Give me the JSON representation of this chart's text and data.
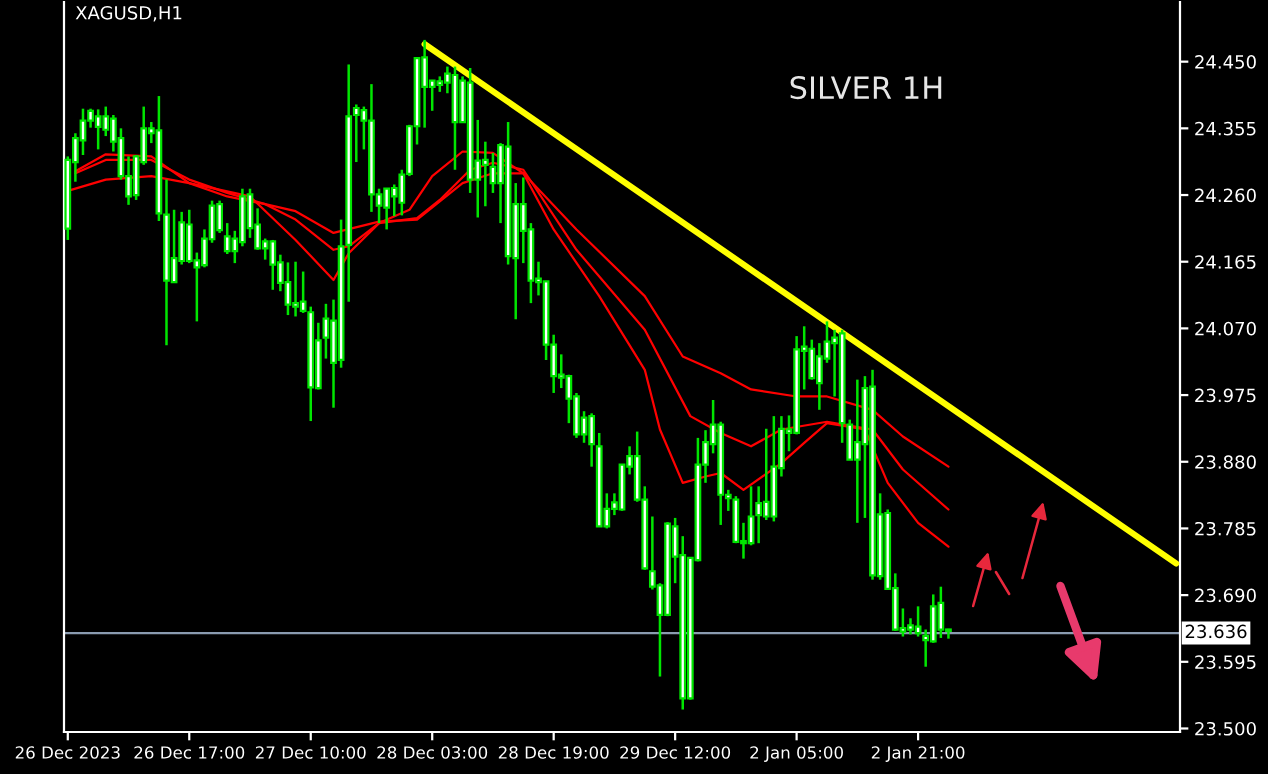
{
  "chart_data": {
    "type": "candlestick",
    "title": "XAGUSD,H1",
    "annotations": [
      "SILVER 1H"
    ],
    "color": "#00e600",
    "categories": [
      "26 Dec 2023",
      null,
      null,
      null,
      null,
      null,
      null,
      null,
      null,
      null,
      null,
      null,
      null,
      null,
      null,
      null,
      "26 Dec 17:00",
      null,
      null,
      null,
      null,
      null,
      null,
      null,
      null,
      null,
      null,
      null,
      null,
      null,
      null,
      null,
      "27 Dec 10:00",
      null,
      null,
      null,
      null,
      null,
      null,
      null,
      null,
      null,
      null,
      null,
      null,
      null,
      null,
      null,
      "28 Dec 03:00",
      null,
      null,
      null,
      null,
      null,
      null,
      null,
      null,
      null,
      null,
      null,
      null,
      null,
      null,
      null,
      "28 Dec 19:00",
      null,
      null,
      null,
      null,
      null,
      null,
      null,
      null,
      null,
      null,
      null,
      null,
      null,
      null,
      null,
      "29 Dec 12:00",
      null,
      null,
      null,
      null,
      null,
      null,
      null,
      null,
      null,
      null,
      null,
      null,
      null,
      null,
      null,
      "2 Jan 05:00",
      null,
      null,
      null,
      null,
      null,
      null,
      null,
      null,
      null,
      null,
      null,
      null,
      null,
      null,
      null,
      "2 Jan 21:00",
      null,
      null,
      null,
      null,
      null,
      null,
      null,
      null,
      null,
      null,
      null,
      null,
      null,
      null,
      null,
      null,
      null,
      null,
      null,
      null,
      null,
      null,
      null,
      null,
      null,
      null,
      null,
      null,
      null,
      null,
      null,
      null,
      null,
      null
    ],
    "ohlc": [
      [
        24.212,
        24.315,
        24.196,
        24.31
      ],
      [
        24.307,
        24.348,
        24.279,
        24.341
      ],
      [
        24.338,
        24.383,
        24.317,
        24.366
      ],
      [
        24.366,
        24.383,
        24.356,
        24.38
      ],
      [
        24.357,
        24.382,
        24.325,
        24.372
      ],
      [
        24.353,
        24.386,
        24.344,
        24.372
      ],
      [
        24.336,
        24.374,
        24.322,
        24.369
      ],
      [
        24.287,
        24.355,
        24.282,
        24.341
      ],
      [
        24.258,
        24.315,
        24.246,
        24.287
      ],
      [
        24.26,
        24.317,
        24.253,
        24.315
      ],
      [
        24.307,
        24.386,
        24.303,
        24.355
      ],
      [
        24.348,
        24.364,
        24.334,
        24.355
      ],
      [
        24.234,
        24.401,
        24.223,
        24.352
      ],
      [
        24.138,
        24.282,
        24.046,
        24.232
      ],
      [
        24.136,
        24.239,
        24.135,
        24.17
      ],
      [
        24.166,
        24.236,
        24.161,
        24.221
      ],
      [
        24.166,
        24.239,
        24.163,
        24.218
      ],
      [
        24.157,
        24.178,
        24.08,
        24.167
      ],
      [
        24.16,
        24.211,
        24.157,
        24.198
      ],
      [
        24.197,
        24.252,
        24.192,
        24.245
      ],
      [
        24.21,
        24.252,
        24.206,
        24.247
      ],
      [
        24.18,
        24.22,
        24.176,
        24.201
      ],
      [
        24.18,
        24.209,
        24.163,
        24.198
      ],
      [
        24.193,
        24.269,
        24.187,
        24.258
      ],
      [
        24.213,
        24.269,
        24.199,
        24.261
      ],
      [
        24.184,
        24.241,
        24.182,
        24.218
      ],
      [
        24.184,
        24.198,
        24.168,
        24.194
      ],
      [
        24.161,
        24.196,
        24.125,
        24.194
      ],
      [
        24.135,
        24.175,
        24.123,
        24.164
      ],
      [
        24.104,
        24.164,
        24.089,
        24.136
      ],
      [
        24.101,
        24.165,
        24.087,
        24.106
      ],
      [
        24.095,
        24.151,
        24.092,
        24.108
      ],
      [
        23.986,
        24.101,
        23.938,
        24.093
      ],
      [
        23.985,
        24.078,
        23.983,
        24.053
      ],
      [
        24.057,
        24.105,
        24.027,
        24.084
      ],
      [
        24.021,
        24.111,
        23.957,
        24.081
      ],
      [
        24.025,
        24.225,
        24.014,
        24.187
      ],
      [
        24.189,
        24.446,
        24.108,
        24.372
      ],
      [
        24.374,
        24.389,
        24.307,
        24.384
      ],
      [
        24.366,
        24.386,
        24.325,
        24.381
      ],
      [
        24.261,
        24.418,
        24.236,
        24.366
      ],
      [
        24.245,
        24.269,
        24.22,
        24.261
      ],
      [
        24.242,
        24.269,
        24.211,
        24.269
      ],
      [
        24.258,
        24.275,
        24.23,
        24.27
      ],
      [
        24.249,
        24.296,
        24.231,
        24.289
      ],
      [
        24.29,
        24.36,
        24.287,
        24.358
      ],
      [
        24.358,
        24.455,
        24.332,
        24.455
      ],
      [
        24.414,
        24.481,
        24.356,
        24.456
      ],
      [
        24.414,
        24.424,
        24.38,
        24.423
      ],
      [
        24.417,
        24.429,
        24.407,
        24.422
      ],
      [
        24.42,
        24.443,
        24.405,
        24.433
      ],
      [
        24.364,
        24.443,
        24.296,
        24.431
      ],
      [
        24.364,
        24.429,
        24.363,
        24.423
      ],
      [
        24.282,
        24.441,
        24.263,
        24.42
      ],
      [
        24.282,
        24.367,
        24.228,
        24.309
      ],
      [
        24.303,
        24.336,
        24.244,
        24.31
      ],
      [
        24.277,
        24.32,
        24.263,
        24.3
      ],
      [
        24.277,
        24.334,
        24.22,
        24.331
      ],
      [
        24.173,
        24.364,
        24.161,
        24.329
      ],
      [
        24.17,
        24.277,
        24.083,
        24.247
      ],
      [
        24.209,
        24.285,
        24.163,
        24.247
      ],
      [
        24.138,
        24.22,
        24.106,
        24.211
      ],
      [
        24.136,
        24.165,
        24.117,
        24.141
      ],
      [
        24.047,
        24.137,
        24.025,
        24.137
      ],
      [
        24.002,
        24.061,
        23.978,
        24.047
      ],
      [
        24.0,
        24.033,
        23.985,
        24.004
      ],
      [
        23.97,
        24.004,
        23.935,
        24.002
      ],
      [
        23.919,
        23.978,
        23.914,
        23.973
      ],
      [
        23.919,
        23.952,
        23.907,
        23.943
      ],
      [
        23.905,
        23.949,
        23.873,
        23.945
      ],
      [
        23.788,
        23.921,
        23.788,
        23.902
      ],
      [
        23.788,
        23.835,
        23.785,
        23.813
      ],
      [
        23.813,
        23.835,
        23.804,
        23.822
      ],
      [
        23.812,
        23.876,
        23.81,
        23.876
      ],
      [
        23.873,
        23.902,
        23.862,
        23.888
      ],
      [
        23.826,
        23.923,
        23.823,
        23.888
      ],
      [
        23.728,
        23.845,
        23.726,
        23.826
      ],
      [
        23.702,
        23.802,
        23.698,
        23.724
      ],
      [
        23.662,
        23.707,
        23.574,
        23.704
      ],
      [
        23.662,
        23.794,
        23.66,
        23.792
      ],
      [
        23.745,
        23.8,
        23.707,
        23.788
      ],
      [
        23.543,
        23.774,
        23.527,
        23.747
      ],
      [
        23.543,
        23.743,
        23.541,
        23.743
      ],
      [
        23.74,
        23.914,
        23.738,
        23.876
      ],
      [
        23.876,
        23.925,
        23.85,
        23.908
      ],
      [
        23.905,
        23.968,
        23.892,
        23.933
      ],
      [
        23.833,
        23.937,
        23.79,
        23.933
      ],
      [
        23.828,
        23.84,
        23.81,
        23.833
      ],
      [
        23.766,
        23.831,
        23.764,
        23.826
      ],
      [
        23.764,
        23.793,
        23.742,
        23.767
      ],
      [
        23.764,
        23.845,
        23.761,
        23.802
      ],
      [
        23.804,
        23.845,
        23.764,
        23.821
      ],
      [
        23.802,
        23.927,
        23.797,
        23.823
      ],
      [
        23.802,
        23.945,
        23.795,
        23.873
      ],
      [
        23.871,
        23.945,
        23.859,
        23.927
      ],
      [
        23.921,
        23.946,
        23.895,
        23.926
      ],
      [
        23.921,
        24.059,
        23.919,
        24.04
      ],
      [
        24.038,
        24.073,
        23.983,
        24.044
      ],
      [
        23.999,
        24.054,
        23.997,
        24.041
      ],
      [
        23.992,
        24.049,
        23.954,
        24.03
      ],
      [
        24.027,
        24.08,
        24.021,
        24.051
      ],
      [
        24.049,
        24.068,
        23.973,
        24.057
      ],
      [
        23.935,
        24.068,
        23.907,
        24.063
      ],
      [
        23.883,
        23.94,
        23.883,
        23.933
      ],
      [
        23.883,
        23.997,
        23.793,
        23.908
      ],
      [
        23.905,
        24.002,
        23.8,
        23.985
      ],
      [
        23.718,
        24.011,
        23.712,
        23.987
      ],
      [
        23.717,
        23.835,
        23.712,
        23.805
      ],
      [
        23.699,
        23.812,
        23.699,
        23.807
      ],
      [
        23.641,
        23.721,
        23.639,
        23.7
      ],
      [
        23.638,
        23.671,
        23.631,
        23.643
      ],
      [
        23.641,
        23.657,
        23.634,
        23.647
      ],
      [
        23.636,
        23.674,
        23.631,
        23.645
      ],
      [
        23.626,
        23.641,
        23.588,
        23.632
      ],
      [
        23.624,
        23.691,
        23.622,
        23.674
      ],
      [
        23.641,
        23.702,
        23.629,
        23.679
      ],
      [
        23.639,
        23.642,
        23.628,
        23.641
      ],
      null,
      null,
      null,
      null,
      null,
      null,
      null,
      null,
      null,
      null,
      null,
      null,
      null,
      null,
      null,
      null,
      null,
      null,
      null,
      null,
      null,
      null,
      null,
      null,
      null,
      null,
      null,
      null,
      null,
      null
    ],
    "series": [
      {
        "type": "line",
        "color": "#ff0000",
        "values": [
          null,
          24.294,
          null,
          null,
          null,
          24.318,
          null,
          null,
          null,
          null,
          null,
          24.315,
          null,
          null,
          null,
          null,
          24.277,
          null,
          null,
          null,
          null,
          null,
          null,
          null,
          24.258,
          null,
          null,
          null,
          null,
          null,
          24.196,
          null,
          null,
          null,
          null,
          24.139,
          null,
          24.177,
          null,
          null,
          null,
          24.22,
          null,
          null,
          null,
          24.239,
          null,
          null,
          24.287,
          null,
          null,
          null,
          24.322,
          null,
          null,
          null,
          24.32,
          null,
          null,
          null,
          24.291,
          null,
          null,
          null,
          24.211,
          null,
          null,
          null,
          null,
          null,
          24.116,
          null,
          null,
          null,
          null,
          null,
          24.011,
          null,
          23.926,
          null,
          null,
          23.85,
          null,
          null,
          23.859,
          null,
          23.864,
          null,
          null,
          23.84,
          null,
          null,
          null,
          null,
          23.878,
          null,
          null,
          23.907,
          null,
          null,
          23.935,
          null,
          null,
          null,
          null,
          23.926,
          null,
          null,
          23.85,
          null,
          null,
          null,
          23.793,
          null,
          null,
          null,
          23.759,
          null,
          null,
          null,
          null,
          null,
          null,
          null,
          null,
          null,
          null,
          null,
          null,
          null,
          null,
          null,
          null,
          null,
          null,
          null,
          null,
          null,
          null,
          null,
          null,
          null,
          null,
          null,
          null,
          null,
          null
        ]
      },
      {
        "type": "line",
        "color": "#ff0000",
        "values": [
          null,
          24.291,
          null,
          null,
          null,
          24.31,
          null,
          null,
          null,
          null,
          null,
          24.31,
          null,
          null,
          null,
          null,
          24.282,
          null,
          null,
          null,
          null,
          24.263,
          null,
          null,
          null,
          null,
          24.247,
          null,
          null,
          null,
          24.225,
          null,
          null,
          null,
          null,
          24.182,
          null,
          24.187,
          null,
          null,
          null,
          24.22,
          null,
          null,
          null,
          null,
          24.227,
          null,
          null,
          24.253,
          null,
          null,
          null,
          24.296,
          null,
          null,
          24.306,
          null,
          null,
          null,
          24.296,
          null,
          null,
          null,
          null,
          null,
          null,
          24.182,
          null,
          null,
          null,
          null,
          null,
          null,
          null,
          null,
          24.068,
          null,
          null,
          null,
          null,
          null,
          23.945,
          null,
          null,
          null,
          23.921,
          null,
          null,
          null,
          23.902,
          null,
          null,
          null,
          23.926,
          null,
          null,
          null,
          null,
          null,
          23.937,
          null,
          null,
          null,
          null,
          null,
          23.926,
          null,
          null,
          null,
          23.869,
          null,
          null,
          null,
          null,
          null,
          23.812,
          null,
          null,
          null,
          null,
          null,
          null,
          null,
          null,
          null,
          null,
          null,
          null,
          null,
          null,
          null,
          null,
          null,
          null,
          null,
          null,
          null,
          null,
          null,
          null,
          null,
          null,
          null,
          null,
          null,
          null
        ]
      },
      {
        "type": "line",
        "color": "#ff0000",
        "values": [
          24.266,
          null,
          null,
          null,
          null,
          24.282,
          null,
          null,
          null,
          null,
          null,
          24.287,
          null,
          null,
          null,
          null,
          24.277,
          null,
          null,
          null,
          null,
          24.258,
          null,
          null,
          null,
          null,
          24.247,
          null,
          null,
          null,
          24.237,
          null,
          null,
          null,
          null,
          24.206,
          null,
          null,
          null,
          null,
          null,
          24.222,
          null,
          null,
          null,
          null,
          24.225,
          null,
          null,
          null,
          null,
          null,
          24.277,
          null,
          null,
          null,
          24.291,
          null,
          null,
          null,
          24.291,
          null,
          null,
          null,
          null,
          null,
          null,
          24.211,
          null,
          null,
          null,
          null,
          null,
          null,
          null,
          null,
          24.116,
          null,
          null,
          null,
          null,
          24.03,
          null,
          null,
          null,
          null,
          24.006,
          null,
          null,
          null,
          23.983,
          null,
          null,
          null,
          null,
          null,
          23.973,
          null,
          null,
          null,
          23.973,
          null,
          null,
          null,
          null,
          null,
          23.954,
          null,
          null,
          null,
          23.916,
          null,
          null,
          null,
          null,
          null,
          23.873,
          null,
          null,
          null,
          null,
          null,
          null,
          null,
          null,
          null,
          null,
          null,
          null,
          null,
          null,
          null,
          null,
          null,
          null,
          null,
          null,
          null,
          null,
          null,
          null,
          null,
          null,
          null,
          null,
          null,
          null
        ]
      },
      {
        "type": "line",
        "color": "#ffff00",
        "values": [
          null,
          null,
          null,
          null,
          null,
          null,
          null,
          null,
          null,
          null,
          null,
          null,
          null,
          null,
          null,
          null,
          null,
          null,
          null,
          null,
          null,
          null,
          null,
          null,
          null,
          null,
          null,
          null,
          null,
          null,
          null,
          null,
          null,
          null,
          null,
          null,
          null,
          null,
          null,
          null,
          null,
          null,
          null,
          null,
          null,
          null,
          null,
          24.475,
          null,
          null,
          null,
          null,
          null,
          null,
          null,
          null,
          null,
          null,
          null,
          null,
          null,
          null,
          null,
          null,
          null,
          null,
          null,
          null,
          null,
          null,
          null,
          null,
          null,
          null,
          null,
          null,
          null,
          null,
          null,
          null,
          null,
          null,
          null,
          null,
          null,
          null,
          null,
          null,
          null,
          null,
          null,
          null,
          null,
          null,
          null,
          null,
          null,
          null,
          null,
          null,
          null,
          null,
          null,
          null,
          null,
          null,
          null,
          null,
          null,
          null,
          null,
          null,
          null,
          null,
          null,
          null,
          null,
          null,
          null,
          null,
          null,
          null,
          null,
          null,
          null,
          null,
          null,
          null,
          null,
          null,
          null,
          null,
          null,
          null,
          null,
          null,
          null,
          null,
          null,
          null,
          null,
          null,
          null,
          null,
          null,
          null,
          23.735
        ]
      }
    ],
    "ref_lines": [
      {
        "axis": "y",
        "value": 23.636,
        "label": "23.636",
        "color": "#8a9bb0"
      }
    ],
    "ylim": [
      23.495,
      24.535
    ],
    "yticks": [
      {
        "value": 24.45,
        "label": "24.450"
      },
      {
        "value": 24.355,
        "label": "24.355"
      },
      {
        "value": 24.26,
        "label": "24.260"
      },
      {
        "value": 24.165,
        "label": "24.165"
      },
      {
        "value": 24.07,
        "label": "24.070"
      },
      {
        "value": 23.975,
        "label": "23.975"
      },
      {
        "value": 23.88,
        "label": "23.880"
      },
      {
        "value": 23.785,
        "label": "23.785"
      },
      {
        "value": 23.69,
        "label": "23.690"
      },
      {
        "value": 23.595,
        "label": "23.595"
      },
      {
        "value": 23.5,
        "label": "23.500"
      }
    ],
    "grid": false,
    "marker": "none",
    "line_style": "solid"
  }
}
